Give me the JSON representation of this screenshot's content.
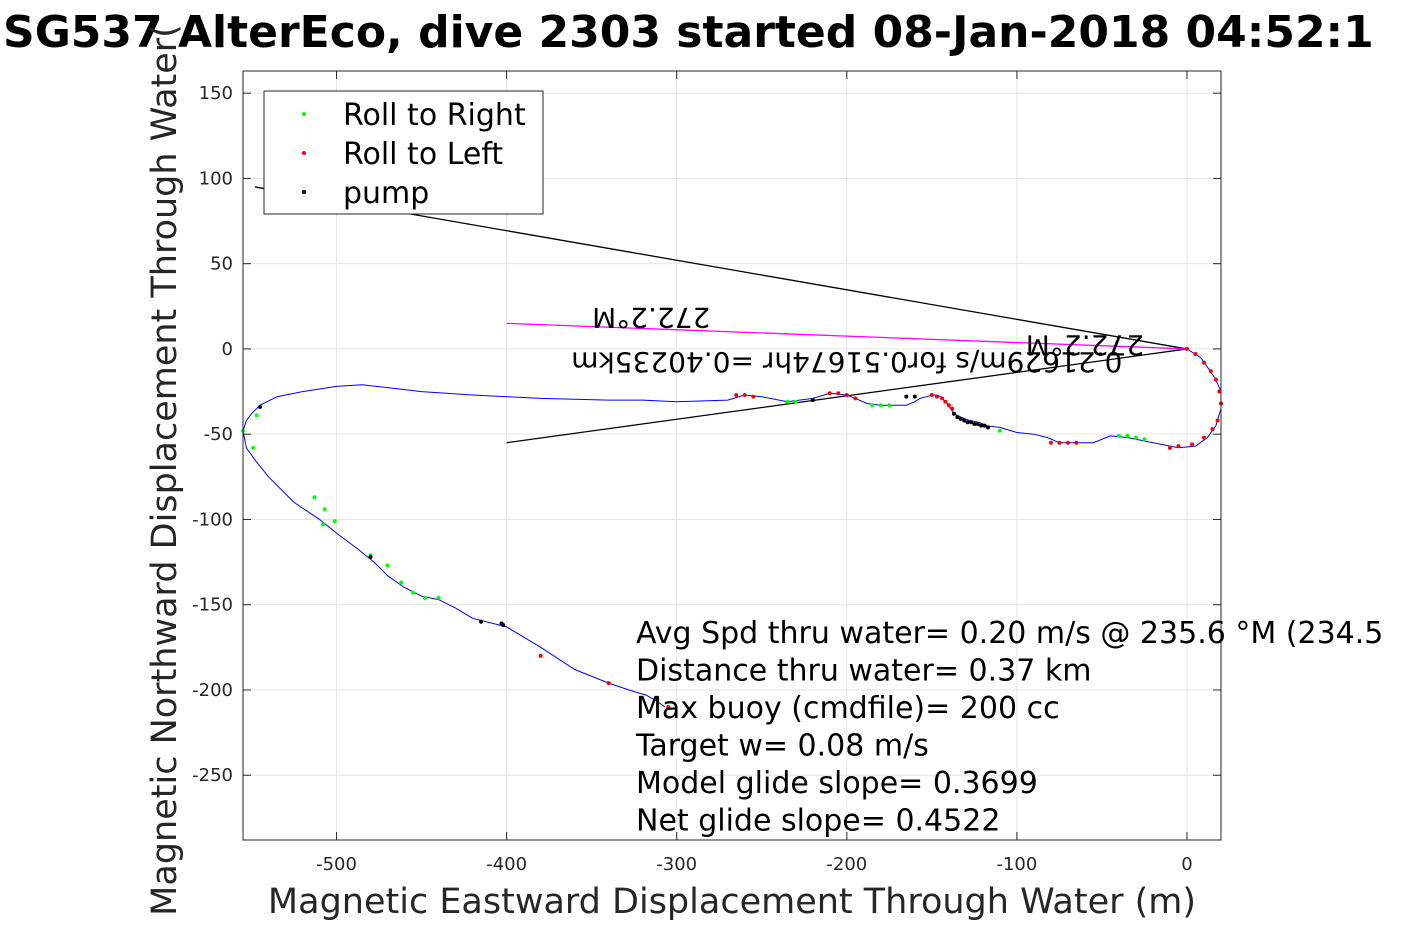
{
  "chart_data": {
    "type": "line",
    "title": "SG537 AlterEco, dive 2303 started 08-Jan-2018 04:52:1",
    "xlabel": "Magnetic Eastward Displacement Through Water (m)",
    "ylabel": "Magnetic Northward Displacement Through Water(",
    "xlim": [
      -555,
      20
    ],
    "ylim": [
      -288,
      163
    ],
    "xticks": [
      -500,
      -400,
      -300,
      -200,
      -100,
      0
    ],
    "yticks": [
      150,
      100,
      50,
      0,
      -50,
      -100,
      -150,
      -200,
      -250
    ],
    "grid": true,
    "legend": {
      "placement": "top-left",
      "entries": [
        {
          "label": "Roll to Right",
          "color": "#00ff00"
        },
        {
          "label": "Roll to Left",
          "color": "#ff0000"
        },
        {
          "label": "pump",
          "color": "#000000"
        }
      ]
    },
    "track": {
      "name": "track",
      "color": "#0000ff",
      "x": [
        0,
        8,
        13,
        17,
        20,
        20,
        17,
        12,
        5,
        -5,
        -20,
        -35,
        -45,
        -55,
        -65,
        -75,
        -82,
        -90,
        -100,
        -110,
        -118,
        -122,
        -128,
        -133,
        -137,
        -139,
        -141,
        -143,
        -145,
        -147,
        -150,
        -153,
        -157,
        -160,
        -165,
        -170,
        -180,
        -188,
        -195,
        -200,
        -210,
        -220,
        -235,
        -250,
        -260,
        -270,
        -300,
        -320,
        -340,
        -380,
        -420,
        -450,
        -485,
        -500,
        -520,
        -535,
        -545,
        -550,
        -553,
        -555,
        -553,
        -548,
        -540,
        -525,
        -510,
        -500,
        -488,
        -478,
        -470,
        -460,
        -450,
        -440,
        -430,
        -420,
        -400,
        -380,
        -360,
        -340,
        -328,
        -318,
        -311,
        -307
      ],
      "y": [
        0,
        -5,
        -12,
        -18,
        -25,
        -35,
        -45,
        -52,
        -57,
        -58,
        -55,
        -52,
        -51,
        -55,
        -55,
        -55,
        -52,
        -50,
        -49,
        -46,
        -45,
        -43,
        -42,
        -40,
        -38,
        -35,
        -32,
        -30,
        -28,
        -27,
        -27,
        -28,
        -29,
        -31,
        -33,
        -33,
        -33,
        -32,
        -29,
        -27,
        -26,
        -29,
        -31,
        -28,
        -27,
        -30,
        -31,
        -30,
        -30,
        -29,
        -27,
        -25,
        -21,
        -22,
        -25,
        -28,
        -33,
        -38,
        -42,
        -48,
        -58,
        -65,
        -75,
        -90,
        -100,
        -108,
        -117,
        -125,
        -133,
        -140,
        -145,
        -147,
        -152,
        -158,
        -163,
        -175,
        -188,
        -196,
        -200,
        -203,
        -207,
        -210
      ]
    },
    "markers": {
      "roll_right": {
        "color": "#00ff00",
        "x": [
          -180,
          -185,
          -175,
          -235,
          -230,
          -40,
          -35,
          -30,
          -25,
          -110,
          -501,
          -480,
          -470,
          -462,
          -455,
          -448,
          -440,
          -513,
          -507,
          -549,
          -547,
          -555,
          -508
        ],
        "y": [
          -33,
          -33,
          -33,
          -31,
          -31,
          -51,
          -51,
          -52,
          -53,
          -48,
          -101,
          -121,
          -127,
          -137,
          -143,
          -146,
          -146,
          -87,
          -94,
          -58,
          -39,
          -48,
          -103
        ]
      },
      "roll_left": {
        "color": "#ff0000",
        "x": [
          0,
          5,
          10,
          14,
          17,
          19,
          20,
          18,
          15,
          10,
          3,
          -5,
          -10,
          -65,
          -70,
          -75,
          -80,
          -150,
          -147,
          -144,
          -142,
          -140,
          -138,
          -210,
          -205,
          -200,
          -195,
          -255,
          -260,
          -265,
          -305,
          -380,
          -340
        ],
        "y": [
          0,
          -3,
          -8,
          -13,
          -18,
          -25,
          -32,
          -42,
          -47,
          -52,
          -56,
          -57,
          -58,
          -55,
          -55,
          -55,
          -55,
          -27,
          -28,
          -29,
          -31,
          -33,
          -35,
          -26,
          -26,
          -27,
          -29,
          -28,
          -27,
          -27,
          -210,
          -180,
          -196
        ],
        "labels": []
      },
      "pump": {
        "color": "#000000",
        "x": [
          -137,
          -135,
          -133,
          -131,
          -129,
          -127,
          -125,
          -123,
          -121,
          -119,
          -117,
          -160,
          -165,
          -220,
          -415,
          -403,
          -402,
          -545,
          -480
        ],
        "y": [
          -38,
          -40,
          -41,
          -42,
          -43,
          -43,
          -44,
          -44,
          -45,
          -45,
          -46,
          -28,
          -28,
          -30,
          -160,
          -161,
          -162,
          -34,
          -122
        ]
      }
    },
    "reference_lines": [
      {
        "color": "#000000",
        "x": [
          0,
          -548
        ],
        "y": [
          0,
          95
        ]
      },
      {
        "color": "#000000",
        "x": [
          0,
          -400
        ],
        "y": [
          0,
          -55
        ]
      },
      {
        "color": "#ff00ff",
        "x": [
          0,
          -400
        ],
        "y": [
          0,
          15
        ]
      }
    ],
    "flipped_annotations": [
      {
        "text": "272.2°M",
        "x": -315,
        "y": 24
      },
      {
        "text": "0.21629m/s for0.51674hr =0.40235km",
        "x": -200,
        "y": -2
      },
      {
        "text": "272.2°M",
        "x": -60,
        "y": 8
      }
    ],
    "annotations": [
      "Avg Spd thru water=  0.20 m/s @ 235.6 °M (234.5",
      "Distance thru water=  0.37 km",
      "Max buoy (cmdfile)= 200 cc",
      "Target w= 0.08 m/s",
      "Model glide slope= 0.3699",
      "Net glide slope= 0.4522"
    ]
  }
}
